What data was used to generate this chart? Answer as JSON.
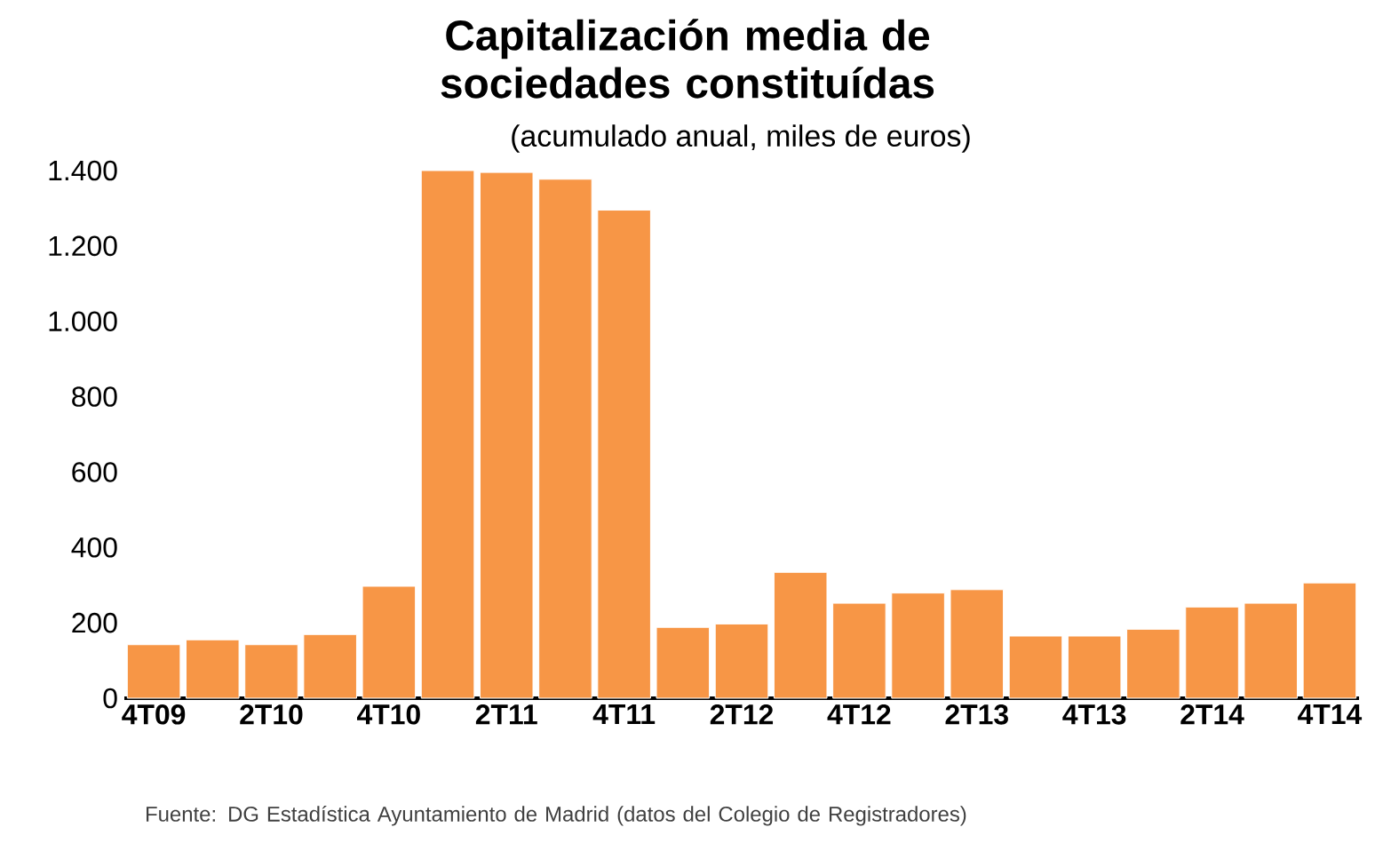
{
  "chart_data": {
    "type": "bar",
    "title": "Capitalización media de sociedades constituídas",
    "subtitle": "(acumulado anual, miles de euros)",
    "categories": [
      "4T09",
      null,
      "2T10",
      null,
      "4T10",
      null,
      "2T11",
      null,
      "4T11",
      null,
      "2T12",
      null,
      "4T12",
      null,
      "2T13",
      null,
      "4T13",
      null,
      "2T14",
      null,
      "4T14"
    ],
    "values": [
      142,
      155,
      142,
      169,
      297,
      1400,
      1395,
      1377,
      1295,
      188,
      197,
      334,
      252,
      279,
      288,
      165,
      165,
      183,
      242,
      252,
      306
    ],
    "color": "#f79646",
    "ylim": [
      0,
      1400
    ],
    "yticks": [
      0,
      200,
      400,
      600,
      800,
      {
        "value": 1000,
        "label": "1.000"
      },
      {
        "value": 1200,
        "label": "1.200"
      },
      {
        "value": 1400,
        "label": "1.400"
      }
    ],
    "annotations": [
      "Fuente: DG Estadística Ayuntamiento de Madrid (datos del Colegio de Registradores)"
    ]
  }
}
